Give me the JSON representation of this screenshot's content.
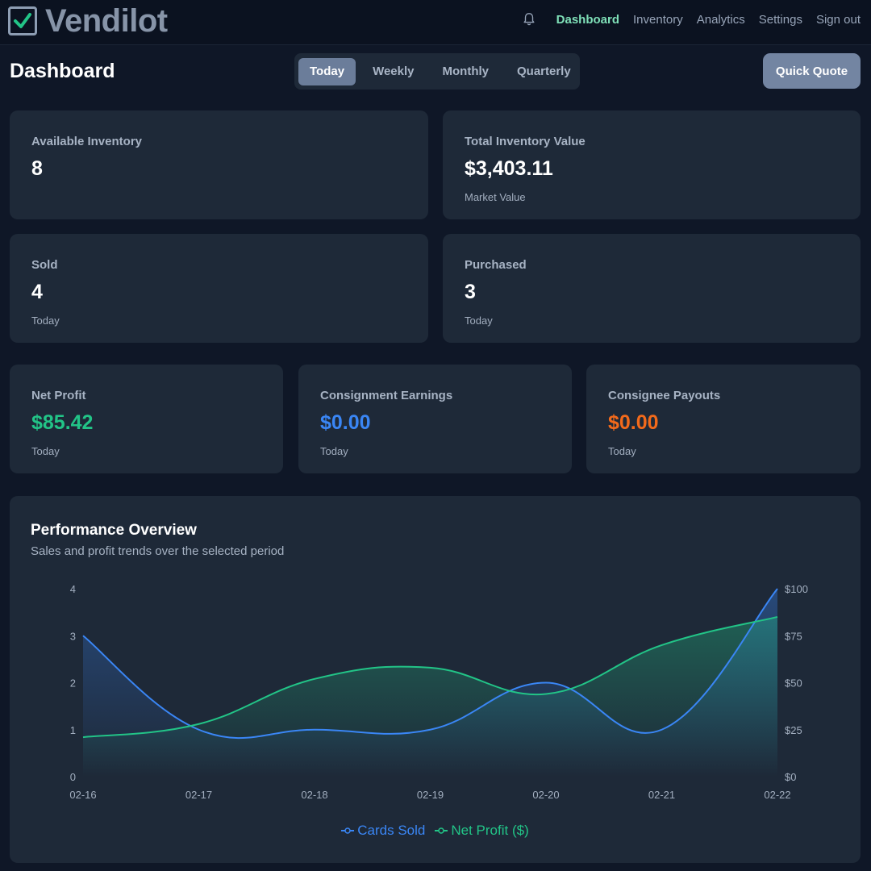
{
  "brand": {
    "name": "Vendilot"
  },
  "nav": {
    "items": [
      "Dashboard",
      "Inventory",
      "Analytics",
      "Settings",
      "Sign out"
    ],
    "active": "Dashboard"
  },
  "page": {
    "title": "Dashboard"
  },
  "period_tabs": {
    "items": [
      "Today",
      "Weekly",
      "Monthly",
      "Quarterly"
    ],
    "selected": "Today"
  },
  "quick_quote_label": "Quick Quote",
  "stats": {
    "available_inventory": {
      "label": "Available Inventory",
      "value": "8"
    },
    "total_inventory_value": {
      "label": "Total Inventory Value",
      "value": "$3,403.11",
      "sub": "Market Value"
    },
    "sold": {
      "label": "Sold",
      "value": "4",
      "sub": "Today"
    },
    "purchased": {
      "label": "Purchased",
      "value": "3",
      "sub": "Today"
    },
    "net_profit": {
      "label": "Net Profit",
      "value": "$85.42",
      "sub": "Today",
      "color": "#22c487"
    },
    "consignment_earnings": {
      "label": "Consignment Earnings",
      "value": "$0.00",
      "sub": "Today",
      "color": "#3a86f5"
    },
    "consignee_payouts": {
      "label": "Consignee Payouts",
      "value": "$0.00",
      "sub": "Today",
      "color": "#f36a1b"
    }
  },
  "chart": {
    "title": "Performance Overview",
    "subtitle": "Sales and profit trends over the selected period"
  },
  "chart_data": {
    "type": "line",
    "x": [
      "02-16",
      "02-17",
      "02-18",
      "02-19",
      "02-20",
      "02-21",
      "02-22"
    ],
    "series": [
      {
        "name": "Cards Sold",
        "axis": "left",
        "color": "#3a86f5",
        "values": [
          3,
          1,
          1,
          1,
          2,
          1,
          4
        ]
      },
      {
        "name": "Net Profit ($)",
        "axis": "right",
        "color": "#22c487",
        "values": [
          21,
          28,
          52,
          58,
          44,
          70,
          85
        ]
      }
    ],
    "y_left": {
      "ticks": [
        "0",
        "1",
        "2",
        "3",
        "4"
      ],
      "range": [
        0,
        4
      ]
    },
    "y_right": {
      "ticks": [
        "$0",
        "$25",
        "$50",
        "$75",
        "$100"
      ],
      "range": [
        0,
        100
      ]
    },
    "grid": false,
    "legend": "bottom-center"
  }
}
